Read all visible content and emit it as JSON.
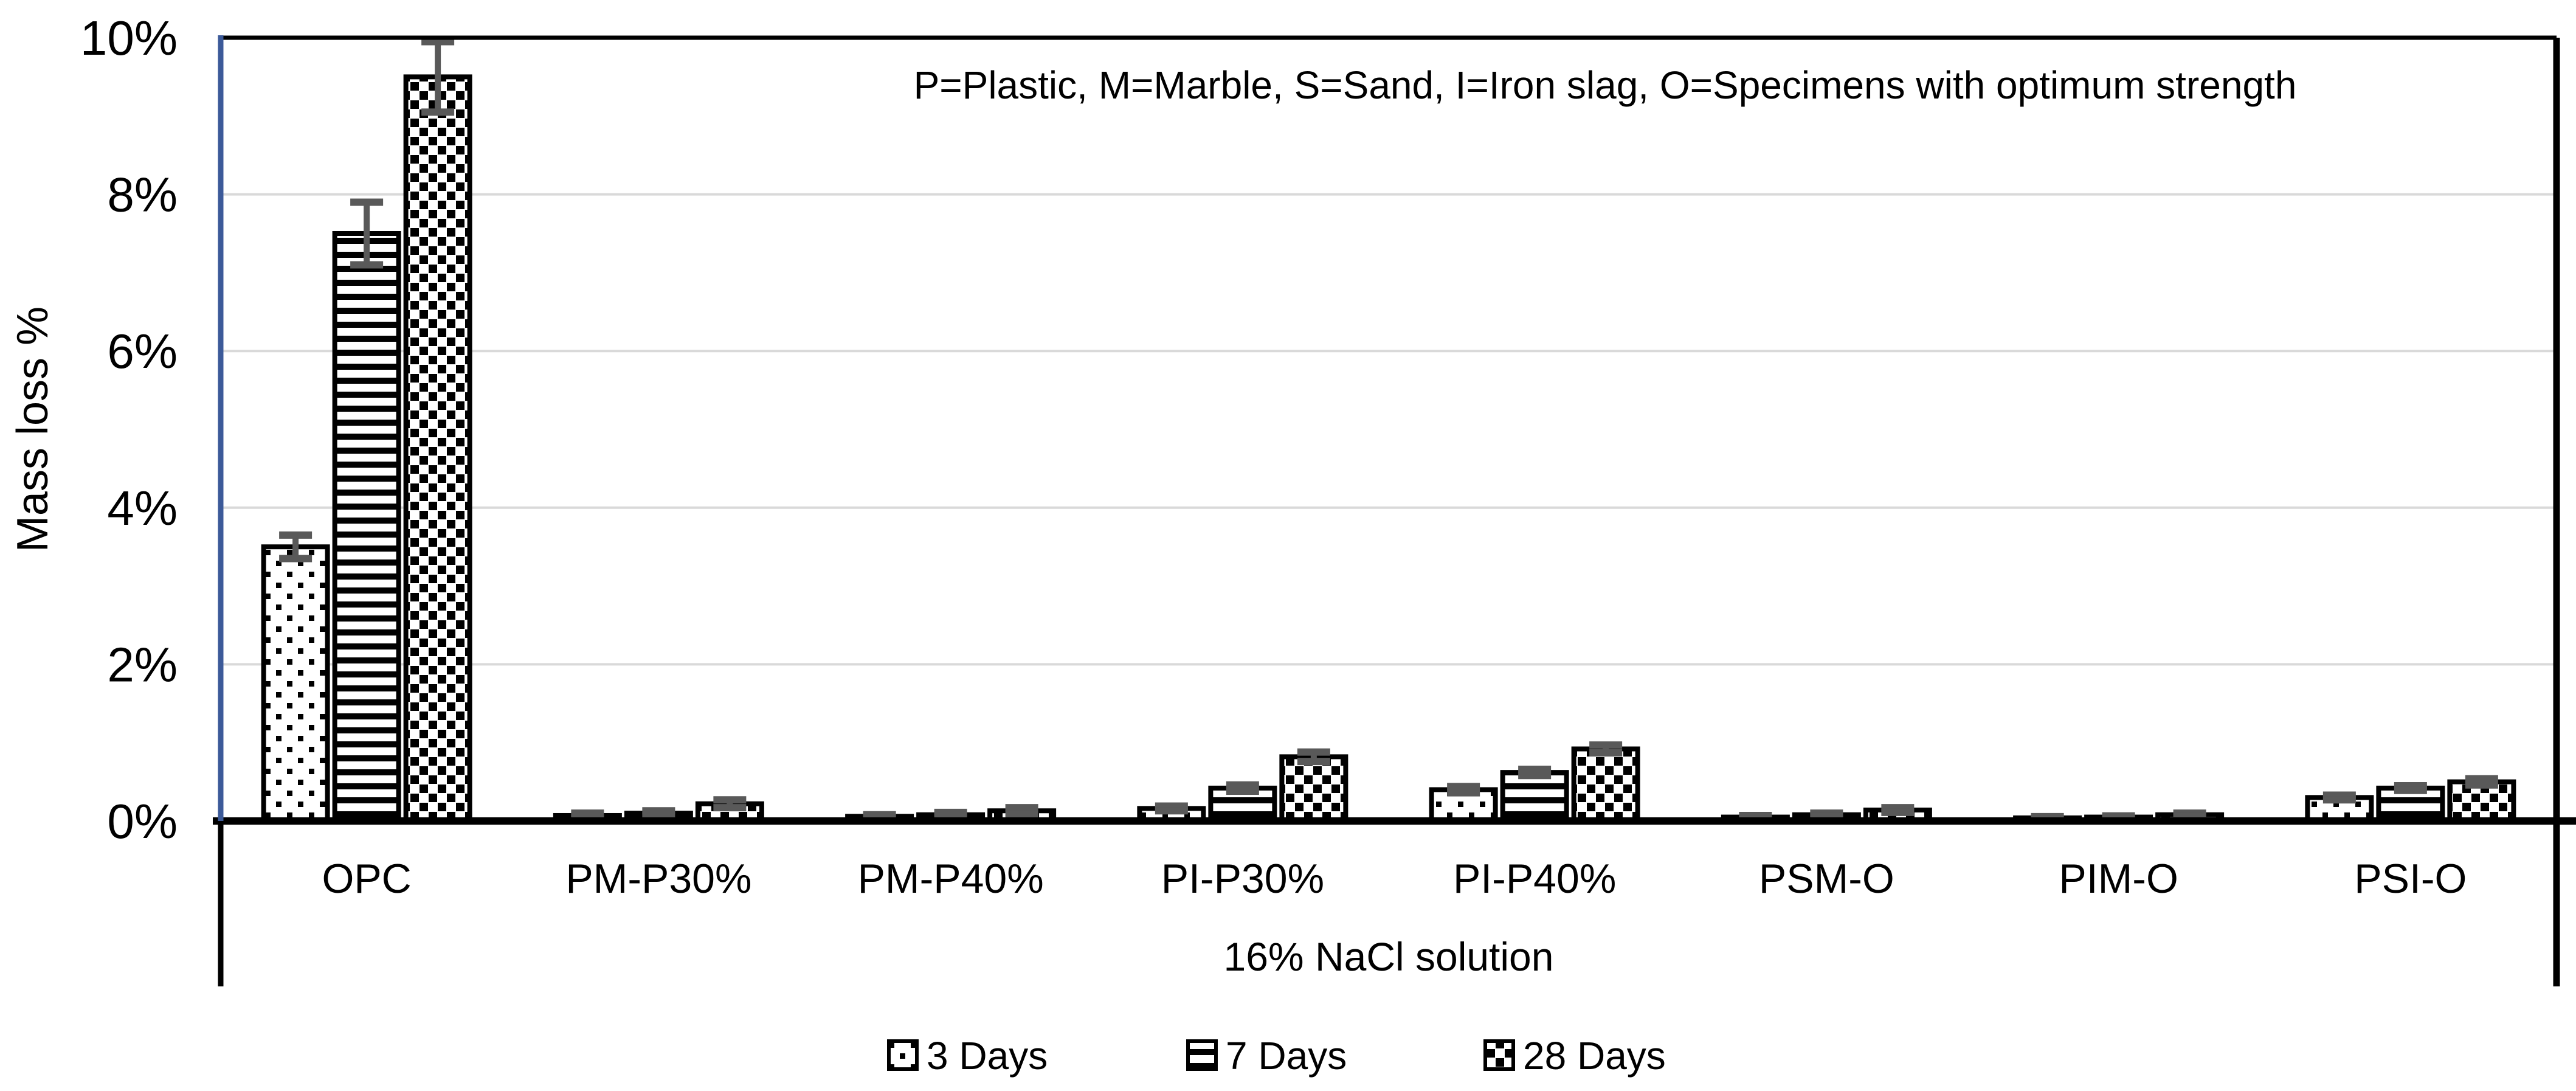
{
  "chart_data": {
    "type": "bar",
    "annotation": "P=Plastic, M=Marble, S=Sand, I=Iron slag, O=Specimens with optimum strength",
    "xlabel": "16% NaCl solution",
    "ylabel": "Mass loss %",
    "categories": [
      "OPC",
      "PM-P30%",
      "PM-P40%",
      "PI-P30%",
      "PI-P40%",
      "PSM-O",
      "PIM-O",
      "PSI-O"
    ],
    "series": [
      {
        "name": "3 Days",
        "pattern": "fine-dots",
        "values": [
          3.5,
          0.07,
          0.06,
          0.16,
          0.4,
          0.05,
          0.04,
          0.3
        ],
        "errors": [
          0.15,
          0.03,
          0.02,
          0.03,
          0.04,
          0.02,
          0.015,
          0.03
        ]
      },
      {
        "name": "7 Days",
        "pattern": "horizontal-stripes",
        "values": [
          7.5,
          0.1,
          0.08,
          0.42,
          0.62,
          0.08,
          0.05,
          0.42
        ],
        "errors": [
          0.4,
          0.03,
          0.03,
          0.04,
          0.04,
          0.02,
          0.015,
          0.03
        ]
      },
      {
        "name": "28 Days",
        "pattern": "coarse-dots",
        "values": [
          9.5,
          0.22,
          0.13,
          0.82,
          0.92,
          0.14,
          0.08,
          0.5
        ],
        "errors": [
          0.45,
          0.05,
          0.04,
          0.06,
          0.05,
          0.03,
          0.02,
          0.04
        ]
      }
    ],
    "y_ticks": [
      "0%",
      "2%",
      "4%",
      "6%",
      "8%",
      "10%"
    ],
    "ylim": [
      0,
      10
    ],
    "grid": true,
    "legend_position": "bottom",
    "colors": {
      "axis_blue": "#3C5A99",
      "grid": "#D9D9D9",
      "error_bar": "#595959",
      "bar_pattern": "#000000",
      "background": "#FFFFFF"
    }
  }
}
